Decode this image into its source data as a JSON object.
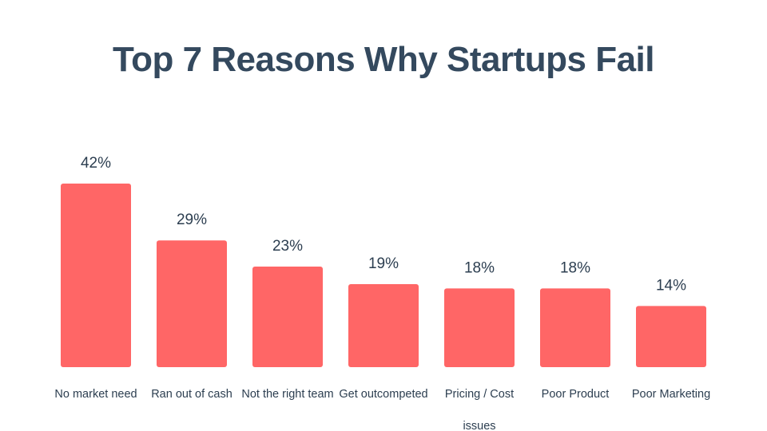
{
  "chart_data": {
    "type": "bar",
    "title": "Top 7 Reasons Why Startups Fail",
    "xlabel": "",
    "ylabel": "",
    "categories": [
      "No market need",
      "Ran out of cash",
      "Not the right team",
      "Get outcompeted",
      "Pricing / Cost issues",
      "Poor Product",
      "Poor Marketing"
    ],
    "category_lines": [
      [
        "No market need"
      ],
      [
        "Ran out of cash"
      ],
      [
        "Not the right team"
      ],
      [
        "Get outcompeted"
      ],
      [
        "Pricing / Cost",
        "issues"
      ],
      [
        "Poor Product"
      ],
      [
        "Poor Marketing"
      ]
    ],
    "values": [
      42,
      29,
      23,
      19,
      18,
      18,
      14
    ],
    "value_labels": [
      "42%",
      "29%",
      "23%",
      "19%",
      "18%",
      "18%",
      "14%"
    ],
    "ylim": [
      0,
      42
    ],
    "grid": false,
    "legend": "none",
    "bar_color": "#ff6666",
    "text_color": "#34495e"
  }
}
